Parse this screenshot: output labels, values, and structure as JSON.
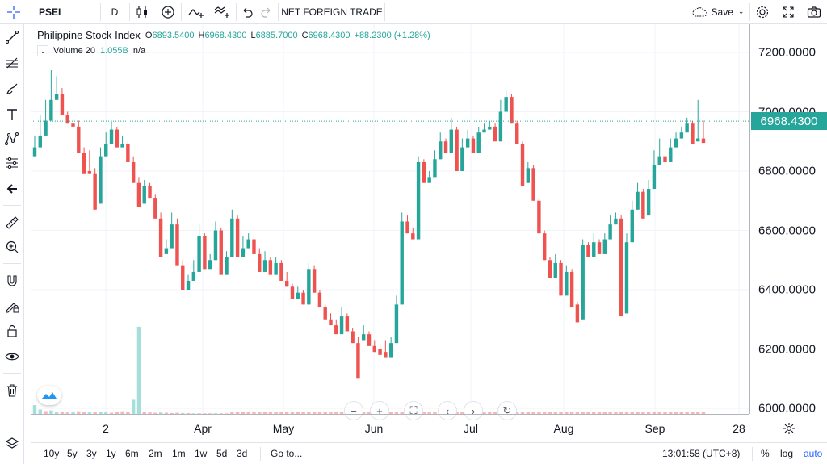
{
  "toolbar": {
    "symbol": "PSEI",
    "interval": "D",
    "indicator_label": "NET FOREIGN TRADE",
    "save_label": "Save"
  },
  "legend": {
    "title": "Philippine Stock Index",
    "open_label": "O",
    "open": "6893.5400",
    "high_label": "H",
    "high": "6968.4300",
    "low_label": "L",
    "low": "6885.7000",
    "close_label": "C",
    "close": "6968.4300",
    "change": "+88.2300 (+1.28%)",
    "volume_label": "Volume 20",
    "volume_value": "1.055B",
    "volume_na": "n/a"
  },
  "price_scale": {
    "ticks": [
      "7200.0000",
      "7000.0000",
      "6800.0000",
      "6600.0000",
      "6400.0000",
      "6200.0000",
      "6000.0000"
    ],
    "last_price": "6968.4300"
  },
  "time_scale": {
    "labels": [
      "2",
      "Apr",
      "May",
      "Jun",
      "Jul",
      "Aug",
      "Sep",
      "28"
    ]
  },
  "bottom_bar": {
    "ranges": [
      "10y",
      "5y",
      "3y",
      "1y",
      "6m",
      "2m",
      "1m",
      "1w",
      "5d",
      "3d"
    ],
    "goto_label": "Go to...",
    "clock": "13:01:58 (UTC+8)",
    "percent_label": "%",
    "log_label": "log",
    "auto_label": "auto"
  },
  "icons": {
    "crosshair": "crosshair-icon",
    "trendline": "trendline-icon",
    "fib": "fib-icon",
    "brush": "brush-icon",
    "text": "text-icon",
    "pattern": "pattern-icon",
    "forecast": "forecast-icon",
    "back": "back-arrow-icon",
    "ruler": "ruler-icon",
    "zoom": "zoom-in-icon",
    "magnet": "magnet-icon",
    "lock_draw": "lock-drawing-icon",
    "lock": "lock-icon",
    "eye": "eye-icon",
    "trash": "trash-icon",
    "layers": "layers-icon"
  },
  "colors": {
    "up": "#26a69a",
    "down": "#ef5350",
    "vol_up": "#a6dfd9",
    "vol_down": "#f7b7b5",
    "grid": "#f0f3fa",
    "text": "#131722"
  },
  "chart_data": {
    "type": "candlestick",
    "symbol": "PSEI",
    "interval": "D",
    "ylim": [
      5980,
      7300
    ],
    "last_price": 6968.43,
    "candles": [
      [
        6850,
        6910,
        6880,
        6920
      ],
      [
        6880,
        6970,
        6920,
        6990
      ],
      [
        6920,
        7000,
        6970,
        7040
      ],
      [
        6970,
        7050,
        7040,
        7140
      ],
      [
        7040,
        7100,
        7060,
        7120
      ],
      [
        7060,
        7080,
        6990,
        7000
      ],
      [
        6990,
        7000,
        6960,
        6970
      ],
      [
        6960,
        7020,
        6950,
        7040
      ],
      [
        6950,
        6970,
        6860,
        6870
      ],
      [
        6860,
        6880,
        6790,
        6800
      ],
      [
        6800,
        6860,
        6790,
        6870
      ],
      [
        6790,
        6810,
        6670,
        6690
      ],
      [
        6690,
        6860,
        6850,
        6880
      ],
      [
        6850,
        6920,
        6890,
        6930
      ],
      [
        6890,
        6960,
        6940,
        6970
      ],
      [
        6940,
        6950,
        6880,
        6890
      ],
      [
        6880,
        6920,
        6890,
        6900
      ],
      [
        6890,
        6900,
        6830,
        6840
      ],
      [
        6830,
        6850,
        6760,
        6770
      ],
      [
        6760,
        6780,
        6680,
        6690
      ],
      [
        6690,
        6760,
        6750,
        6770
      ],
      [
        6750,
        6760,
        6710,
        6720
      ],
      [
        6710,
        6720,
        6640,
        6650
      ],
      [
        6640,
        6660,
        6510,
        6520
      ],
      [
        6520,
        6560,
        6540,
        6570
      ],
      [
        6540,
        6650,
        6620,
        6660
      ],
      [
        6620,
        6640,
        6480,
        6490
      ],
      [
        6480,
        6500,
        6400,
        6410
      ],
      [
        6400,
        6440,
        6430,
        6450
      ],
      [
        6430,
        6480,
        6460,
        6500
      ],
      [
        6460,
        6600,
        6580,
        6620
      ],
      [
        6580,
        6590,
        6470,
        6480
      ],
      [
        6470,
        6510,
        6500,
        6520
      ],
      [
        6500,
        6620,
        6600,
        6630
      ],
      [
        6600,
        6610,
        6450,
        6460
      ],
      [
        6450,
        6520,
        6510,
        6530
      ],
      [
        6510,
        6660,
        6640,
        6670
      ],
      [
        6640,
        6650,
        6510,
        6520
      ],
      [
        6510,
        6560,
        6540,
        6580
      ],
      [
        6540,
        6580,
        6570,
        6590
      ],
      [
        6570,
        6600,
        6520,
        6530
      ],
      [
        6520,
        6540,
        6460,
        6470
      ],
      [
        6460,
        6520,
        6500,
        6530
      ],
      [
        6500,
        6510,
        6450,
        6460
      ],
      [
        6450,
        6500,
        6490,
        6510
      ],
      [
        6490,
        6500,
        6430,
        6440
      ],
      [
        6430,
        6460,
        6410,
        6420
      ],
      [
        6410,
        6420,
        6370,
        6380
      ],
      [
        6370,
        6400,
        6390,
        6410
      ],
      [
        6390,
        6400,
        6350,
        6360
      ],
      [
        6350,
        6480,
        6470,
        6490
      ],
      [
        6470,
        6480,
        6390,
        6400
      ],
      [
        6390,
        6400,
        6340,
        6350
      ],
      [
        6340,
        6350,
        6300,
        6310
      ],
      [
        6300,
        6320,
        6280,
        6290
      ],
      [
        6280,
        6300,
        6250,
        6260
      ],
      [
        6250,
        6320,
        6310,
        6340
      ],
      [
        6310,
        6320,
        6260,
        6270
      ],
      [
        6260,
        6270,
        6220,
        6230
      ],
      [
        6220,
        6240,
        6100,
        6230
      ],
      [
        6230,
        6270,
        6250,
        6280
      ],
      [
        6250,
        6260,
        6210,
        6220
      ],
      [
        6210,
        6230,
        6190,
        6200
      ],
      [
        6200,
        6220,
        6180,
        6190
      ],
      [
        6190,
        6220,
        6170,
        6230
      ],
      [
        6170,
        6230,
        6220,
        6240
      ],
      [
        6220,
        6360,
        6350,
        6380
      ],
      [
        6350,
        6640,
        6630,
        6660
      ],
      [
        6630,
        6650,
        6590,
        6600
      ],
      [
        6590,
        6610,
        6570,
        6580
      ],
      [
        6570,
        6840,
        6830,
        6850
      ],
      [
        6830,
        6840,
        6760,
        6770
      ],
      [
        6760,
        6790,
        6780,
        6800
      ],
      [
        6780,
        6860,
        6840,
        6870
      ],
      [
        6840,
        6920,
        6900,
        6930
      ],
      [
        6900,
        6910,
        6860,
        6870
      ],
      [
        6860,
        6960,
        6940,
        6980
      ],
      [
        6940,
        6950,
        6800,
        6810
      ],
      [
        6800,
        6900,
        6880,
        6910
      ],
      [
        6880,
        6930,
        6910,
        6940
      ],
      [
        6910,
        6920,
        6860,
        6870
      ],
      [
        6860,
        6940,
        6930,
        6950
      ],
      [
        6930,
        6950,
        6940,
        6960
      ],
      [
        6940,
        6960,
        6950,
        6970
      ],
      [
        6950,
        6960,
        6900,
        6910
      ],
      [
        6900,
        7020,
        7000,
        7040
      ],
      [
        7000,
        7060,
        7050,
        7070
      ],
      [
        7050,
        7060,
        6960,
        6970
      ],
      [
        6960,
        6970,
        6890,
        6900
      ],
      [
        6890,
        6900,
        6750,
        6760
      ],
      [
        6760,
        6820,
        6810,
        6830
      ],
      [
        6810,
        6820,
        6700,
        6710
      ],
      [
        6700,
        6710,
        6590,
        6600
      ],
      [
        6590,
        6600,
        6500,
        6510
      ],
      [
        6500,
        6510,
        6440,
        6450
      ],
      [
        6440,
        6510,
        6490,
        6520
      ],
      [
        6490,
        6500,
        6380,
        6390
      ],
      [
        6380,
        6470,
        6460,
        6480
      ],
      [
        6460,
        6470,
        6340,
        6350
      ],
      [
        6350,
        6360,
        6290,
        6300
      ],
      [
        6300,
        6560,
        6550,
        6570
      ],
      [
        6550,
        6560,
        6510,
        6520
      ],
      [
        6510,
        6580,
        6560,
        6590
      ],
      [
        6560,
        6570,
        6520,
        6530
      ],
      [
        6520,
        6580,
        6570,
        6590
      ],
      [
        6570,
        6640,
        6620,
        6650
      ],
      [
        6620,
        6650,
        6640,
        6660
      ],
      [
        6640,
        6650,
        6310,
        6320
      ],
      [
        6320,
        6580,
        6560,
        6590
      ],
      [
        6560,
        6690,
        6670,
        6700
      ],
      [
        6670,
        6750,
        6730,
        6760
      ],
      [
        6730,
        6740,
        6640,
        6650
      ],
      [
        6650,
        6760,
        6740,
        6770
      ],
      [
        6740,
        6860,
        6820,
        6870
      ],
      [
        6820,
        6900,
        6850,
        6910
      ],
      [
        6850,
        6860,
        6830,
        6840
      ],
      [
        6830,
        6900,
        6880,
        6910
      ],
      [
        6880,
        6920,
        6910,
        6930
      ],
      [
        6910,
        6940,
        6930,
        6950
      ],
      [
        6930,
        6970,
        6960,
        6980
      ],
      [
        6960,
        6970,
        6890,
        6900
      ],
      [
        6900,
        7030,
        6910,
        7040
      ],
      [
        6910,
        6968,
        6895,
        6970
      ]
    ],
    "volumes": [
      [
        0.3,
        1
      ],
      [
        0.15,
        1
      ],
      [
        0.1,
        0
      ],
      [
        0.12,
        1
      ],
      [
        0.08,
        1
      ],
      [
        0.06,
        0
      ],
      [
        0.05,
        0
      ],
      [
        0.07,
        1
      ],
      [
        0.09,
        0
      ],
      [
        0.06,
        0
      ],
      [
        0.05,
        1
      ],
      [
        0.08,
        0
      ],
      [
        0.06,
        1
      ],
      [
        0.05,
        1
      ],
      [
        0.04,
        0
      ],
      [
        0.06,
        0
      ],
      [
        0.09,
        0
      ],
      [
        0.08,
        0
      ],
      [
        0.48,
        1
      ],
      [
        2.95,
        1
      ],
      [
        0.06,
        0
      ],
      [
        0.05,
        0
      ],
      [
        0.04,
        0
      ],
      [
        0.05,
        1
      ],
      [
        0.04,
        0
      ],
      [
        0.03,
        0
      ],
      [
        0.04,
        0
      ],
      [
        0.03,
        1
      ],
      [
        0.03,
        0
      ],
      [
        0.02,
        1
      ],
      [
        0.02,
        0
      ],
      [
        0.02,
        0
      ],
      [
        0.02,
        0
      ],
      [
        0.02,
        1
      ],
      [
        0.02,
        0
      ],
      [
        0.02,
        0
      ]
    ]
  }
}
